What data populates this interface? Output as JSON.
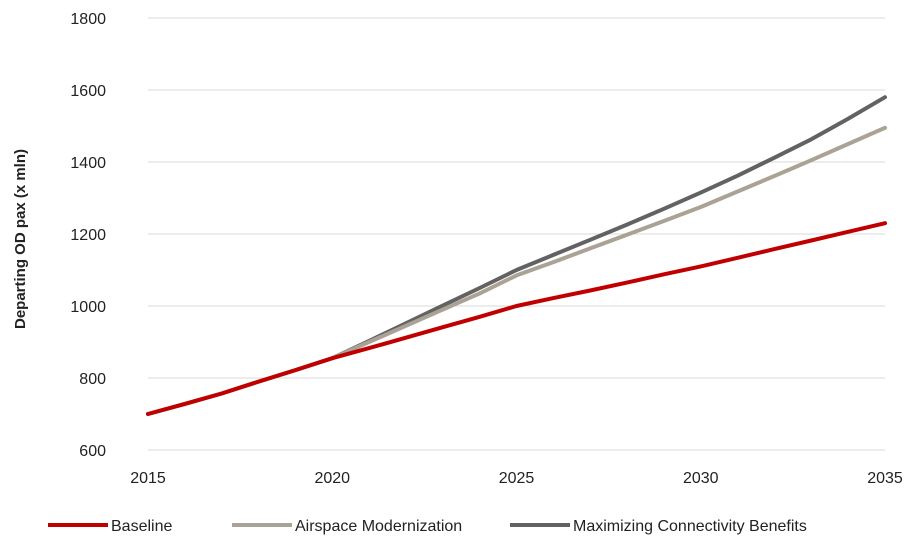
{
  "chart_data": {
    "type": "line",
    "title": "",
    "xlabel": "",
    "ylabel": "Departing OD pax (x mln)",
    "x": [
      2015,
      2016,
      2017,
      2018,
      2019,
      2020,
      2021,
      2022,
      2023,
      2024,
      2025,
      2026,
      2027,
      2028,
      2029,
      2030,
      2031,
      2032,
      2033,
      2034,
      2035
    ],
    "xticks": [
      2015,
      2020,
      2025,
      2030,
      2035
    ],
    "ylim": [
      600,
      1800
    ],
    "yticks": [
      600,
      800,
      1000,
      1200,
      1400,
      1600,
      1800
    ],
    "grid": "horizontal",
    "legend_position": "bottom",
    "series": [
      {
        "name": "Baseline",
        "color": "#c00000",
        "values": [
          700,
          728,
          757,
          790,
          822,
          855,
          883,
          912,
          941,
          970,
          1000,
          1022,
          1043,
          1065,
          1088,
          1110,
          1134,
          1158,
          1182,
          1206,
          1230
        ]
      },
      {
        "name": "Airspace Modernization",
        "color": "#aaa294",
        "values": [
          700,
          728,
          757,
          790,
          822,
          855,
          900,
          945,
          990,
          1035,
          1085,
          1122,
          1160,
          1198,
          1236,
          1275,
          1318,
          1361,
          1405,
          1450,
          1495
        ]
      },
      {
        "name": "Maximizing Connectivity Benefits",
        "color": "#626262",
        "values": [
          700,
          728,
          757,
          790,
          822,
          855,
          903,
          952,
          1001,
          1050,
          1100,
          1142,
          1184,
          1226,
          1270,
          1315,
          1362,
          1412,
          1463,
          1520,
          1580
        ]
      }
    ]
  }
}
